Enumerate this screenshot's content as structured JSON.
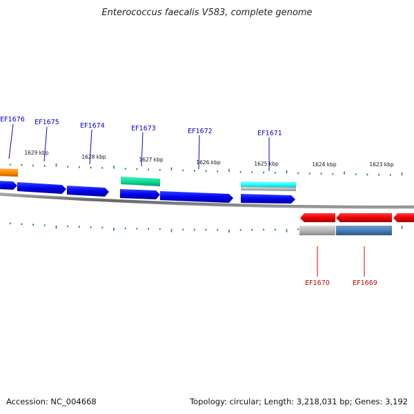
{
  "title": "Enterococcus faecalis V583, complete genome",
  "colors": {
    "forward_label": "#0000cc",
    "reverse_label": "#cc0000",
    "tick": "#228b22",
    "backbone": "#777777",
    "forward_cds": "#0000ee",
    "reverse_cds": "#ee0000",
    "orange_feature": "#ff8c00",
    "green_feature": "#11dd99",
    "cyan_feature": "#22ffff",
    "gray_feature": "#b8b8b8",
    "steel_feature": "#4a7fb5"
  },
  "kbp_labels": [
    "1629 kbp",
    "1628 kbp",
    "1627 kbp",
    "1626 kbp",
    "1625 kbp",
    "1624 kbp",
    "1623 kbp"
  ],
  "forward_genes": [
    "EF1676",
    "EF1675",
    "EF1674",
    "EF1673",
    "EF1672",
    "EF1671"
  ],
  "reverse_genes": [
    "EF1670",
    "EF1669"
  ],
  "footer": {
    "accession": "Accession: NC_004668",
    "topology": "Topology: circular; Length: 3,218,031 bp; Genes: 3,192"
  }
}
